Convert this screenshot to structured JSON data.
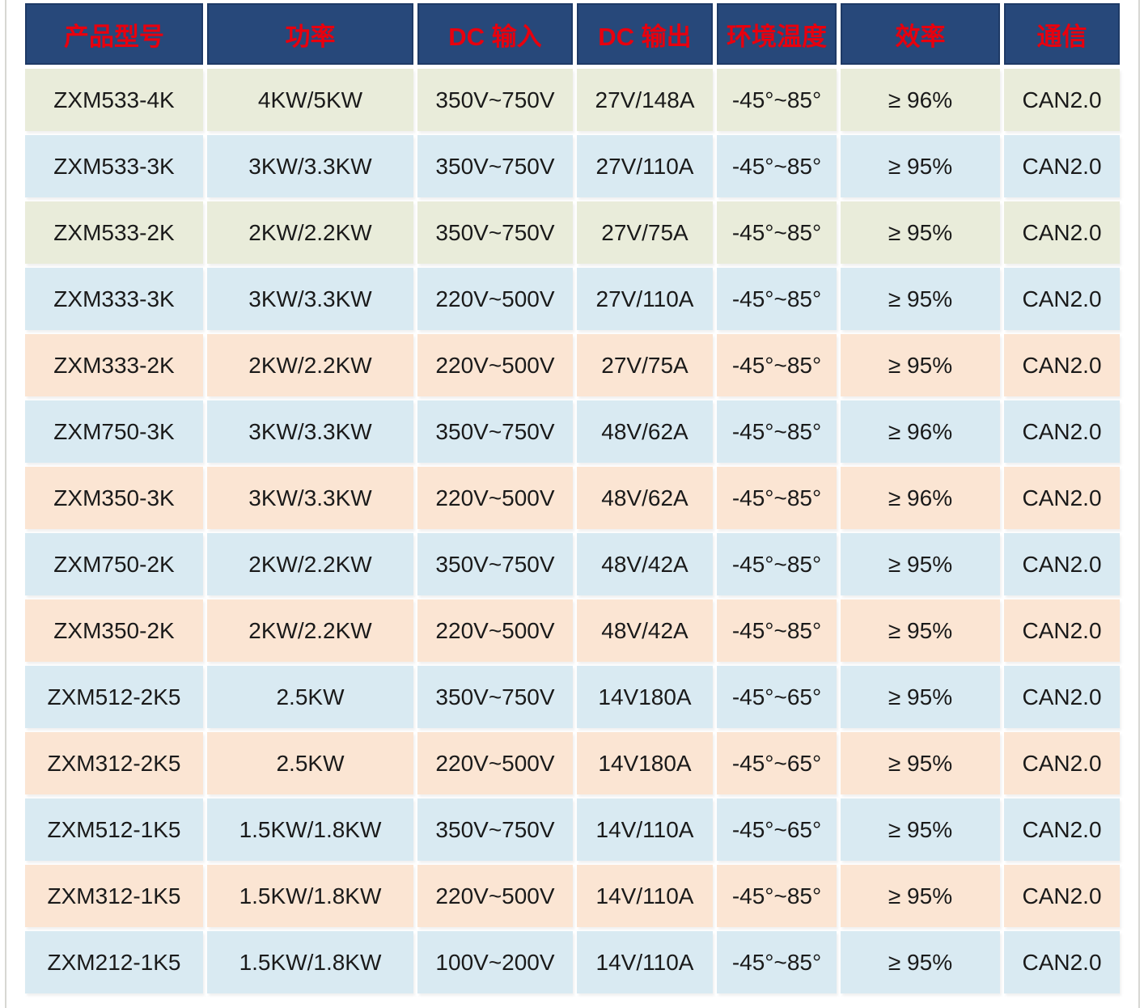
{
  "colors": {
    "page_bg": "#ffffff",
    "header_bg": "#27487a",
    "header_text": "#e8000e",
    "header_border": "#1e3a66",
    "row_green": "#e9ecda",
    "row_blue": "#d9eaf2",
    "row_peach": "#fbe5d3",
    "cell_text": "#1a1a1a"
  },
  "chart_data": {
    "type": "table",
    "columns": [
      {
        "key": "model",
        "label": "产品型号"
      },
      {
        "key": "power",
        "label": "功率"
      },
      {
        "key": "dc_input",
        "label": "DC 输入"
      },
      {
        "key": "dc_output",
        "label": "DC 输出"
      },
      {
        "key": "ambient_temp",
        "label": "环境温度"
      },
      {
        "key": "efficiency",
        "label": "效率"
      },
      {
        "key": "communication",
        "label": "通信"
      }
    ],
    "rows": [
      {
        "model": "ZXM533-4K",
        "power": "4KW/5KW",
        "dc_input": "350V~750V",
        "dc_output": "27V/148A",
        "ambient_temp": "-45°~85°",
        "efficiency": "≥ 96%",
        "communication": "CAN2.0",
        "theme": "green"
      },
      {
        "model": "ZXM533-3K",
        "power": "3KW/3.3KW",
        "dc_input": "350V~750V",
        "dc_output": "27V/110A",
        "ambient_temp": "-45°~85°",
        "efficiency": "≥ 95%",
        "communication": "CAN2.0",
        "theme": "blue"
      },
      {
        "model": "ZXM533-2K",
        "power": "2KW/2.2KW",
        "dc_input": "350V~750V",
        "dc_output": "27V/75A",
        "ambient_temp": "-45°~85°",
        "efficiency": "≥ 95%",
        "communication": "CAN2.0",
        "theme": "green"
      },
      {
        "model": "ZXM333-3K",
        "power": "3KW/3.3KW",
        "dc_input": "220V~500V",
        "dc_output": "27V/110A",
        "ambient_temp": "-45°~85°",
        "efficiency": "≥ 95%",
        "communication": "CAN2.0",
        "theme": "blue"
      },
      {
        "model": "ZXM333-2K",
        "power": "2KW/2.2KW",
        "dc_input": "220V~500V",
        "dc_output": "27V/75A",
        "ambient_temp": "-45°~85°",
        "efficiency": "≥ 95%",
        "communication": "CAN2.0",
        "theme": "peach"
      },
      {
        "model": "ZXM750-3K",
        "power": "3KW/3.3KW",
        "dc_input": "350V~750V",
        "dc_output": "48V/62A",
        "ambient_temp": "-45°~85°",
        "efficiency": "≥ 96%",
        "communication": "CAN2.0",
        "theme": "blue"
      },
      {
        "model": "ZXM350-3K",
        "power": "3KW/3.3KW",
        "dc_input": "220V~500V",
        "dc_output": "48V/62A",
        "ambient_temp": "-45°~85°",
        "efficiency": "≥ 96%",
        "communication": "CAN2.0",
        "theme": "peach"
      },
      {
        "model": "ZXM750-2K",
        "power": "2KW/2.2KW",
        "dc_input": "350V~750V",
        "dc_output": "48V/42A",
        "ambient_temp": "-45°~85°",
        "efficiency": "≥ 95%",
        "communication": "CAN2.0",
        "theme": "blue"
      },
      {
        "model": "ZXM350-2K",
        "power": "2KW/2.2KW",
        "dc_input": "220V~500V",
        "dc_output": "48V/42A",
        "ambient_temp": "-45°~85°",
        "efficiency": "≥ 95%",
        "communication": "CAN2.0",
        "theme": "peach"
      },
      {
        "model": "ZXM512-2K5",
        "power": "2.5KW",
        "dc_input": "350V~750V",
        "dc_output": "14V180A",
        "ambient_temp": "-45°~65°",
        "efficiency": "≥ 95%",
        "communication": "CAN2.0",
        "theme": "blue"
      },
      {
        "model": "ZXM312-2K5",
        "power": "2.5KW",
        "dc_input": "220V~500V",
        "dc_output": "14V180A",
        "ambient_temp": "-45°~65°",
        "efficiency": "≥ 95%",
        "communication": "CAN2.0",
        "theme": "peach"
      },
      {
        "model": "ZXM512-1K5",
        "power": "1.5KW/1.8KW",
        "dc_input": "350V~750V",
        "dc_output": "14V/110A",
        "ambient_temp": "-45°~65°",
        "efficiency": "≥ 95%",
        "communication": "CAN2.0",
        "theme": "blue"
      },
      {
        "model": "ZXM312-1K5",
        "power": "1.5KW/1.8KW",
        "dc_input": "220V~500V",
        "dc_output": "14V/110A",
        "ambient_temp": "-45°~85°",
        "efficiency": "≥ 95%",
        "communication": "CAN2.0",
        "theme": "peach"
      },
      {
        "model": "ZXM212-1K5",
        "power": "1.5KW/1.8KW",
        "dc_input": "100V~200V",
        "dc_output": "14V/110A",
        "ambient_temp": "-45°~85°",
        "efficiency": "≥ 95%",
        "communication": "CAN2.0",
        "theme": "blue"
      }
    ]
  }
}
